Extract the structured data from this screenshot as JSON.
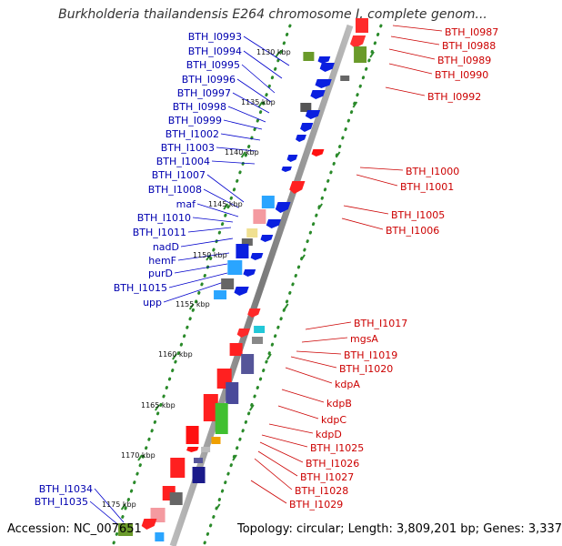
{
  "title": "Burkholderia thailandensis E264 chromosome I, complete genom...",
  "footer": {
    "accession": "Accession: NC_007651",
    "summary": "Topology: circular; Length: 3,809,201 bp; Genes: 3,337"
  },
  "positions": [
    "1130 kbp",
    "1135 kbp",
    "1140 kbp",
    "1145 kbp",
    "1150 kbp",
    "1155 kbp",
    "1160 kbp",
    "1165 kbp",
    "1170 kbp",
    "1175 kbp"
  ],
  "reverse_genes": [
    "BTH_I0993",
    "BTH_I0994",
    "BTH_I0995",
    "BTH_I0996",
    "BTH_I0997",
    "BTH_I0998",
    "BTH_I0999",
    "BTH_I1002",
    "BTH_I1003",
    "BTH_I1004",
    "BTH_I1007",
    "BTH_I1008",
    "maf",
    "BTH_I1010",
    "BTH_I1011",
    "nadD",
    "hemF",
    "purD",
    "BTH_I1015",
    "upp",
    "BTH_I1034",
    "BTH_I1035"
  ],
  "forward_genes": [
    "BTH_I0987",
    "BTH_I0988",
    "BTH_I0989",
    "BTH_I0990",
    "BTH_I0992",
    "BTH_I1000",
    "BTH_I1001",
    "BTH_I1005",
    "BTH_I1006",
    "BTH_I1017",
    "mgsA",
    "BTH_I1019",
    "BTH_I1020",
    "kdpA",
    "kdpB",
    "kdpC",
    "kdpD",
    "BTH_I1025",
    "BTH_I1026",
    "BTH_I1027",
    "BTH_I1028",
    "BTH_I1029"
  ],
  "colors": {
    "reverse_label": "#0000b0",
    "forward_label": "#cc0000",
    "backbone": "#999999",
    "tick": "#2a8a2a"
  }
}
